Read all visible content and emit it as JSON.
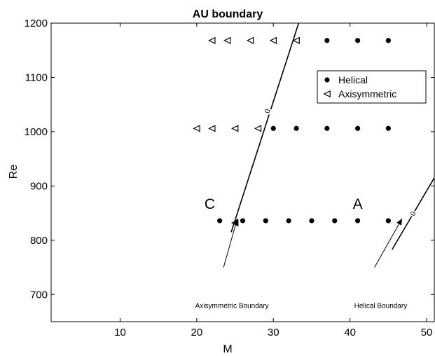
{
  "chart_data": {
    "type": "scatter",
    "title": "AU boundary",
    "xlabel": "M",
    "ylabel": "Re",
    "xlim": [
      1,
      51
    ],
    "ylim": [
      650,
      1200
    ],
    "grid": false,
    "legend_position": "top-right",
    "x_ticks": [
      10,
      20,
      30,
      40,
      50
    ],
    "x_tick_labels": [
      "10",
      "20",
      "30",
      "40",
      "50"
    ],
    "y_ticks": [
      700,
      800,
      900,
      1000,
      1100,
      1200
    ],
    "y_tick_labels": [
      "700",
      "800",
      "900",
      "1000",
      "1100",
      "1200"
    ],
    "series": [
      {
        "name": "Helical",
        "marker": "dot",
        "color": "#000000",
        "points": [
          [
            23,
            836
          ],
          [
            26,
            836
          ],
          [
            29,
            836
          ],
          [
            32,
            836
          ],
          [
            35,
            836
          ],
          [
            38,
            836
          ],
          [
            41,
            836
          ],
          [
            45,
            836
          ],
          [
            30,
            1006
          ],
          [
            33,
            1006
          ],
          [
            37,
            1006
          ],
          [
            41,
            1006
          ],
          [
            45,
            1006
          ],
          [
            37,
            1168
          ],
          [
            41,
            1168
          ],
          [
            45,
            1168
          ]
        ]
      },
      {
        "name": "Axisymmetric",
        "marker": "triangle-left",
        "color": "#000000",
        "points": [
          [
            25,
            832
          ],
          [
            20,
            1006
          ],
          [
            22,
            1006
          ],
          [
            25,
            1006
          ],
          [
            28,
            1006
          ],
          [
            22,
            1168
          ],
          [
            24,
            1168
          ],
          [
            27,
            1168
          ],
          [
            30,
            1168
          ],
          [
            33,
            1168
          ]
        ]
      }
    ],
    "boundaries": [
      {
        "name": "Axisymmetric Boundary",
        "contour_label": "0",
        "points": [
          [
            24.5,
            815
          ],
          [
            33.3,
            1200
          ]
        ],
        "label_at": [
          29.2,
          1038
        ],
        "label_rotation": -72
      },
      {
        "name": "Helical Boundary",
        "contour_label": "0",
        "points": [
          [
            45.5,
            783
          ],
          [
            51,
            915
          ]
        ],
        "label_at": [
          48.2,
          849
        ],
        "label_rotation": -60
      }
    ],
    "annotations": [
      {
        "text": "Axisymmetric Boundary",
        "text_at": [
          24.6,
          675
        ],
        "arrow_from": [
          23.5,
          750
        ],
        "arrow_to": [
          25.3,
          840
        ]
      },
      {
        "text": "Helical Boundary",
        "text_at": [
          44.0,
          675
        ],
        "arrow_from": [
          43.2,
          750
        ],
        "arrow_to": [
          46.8,
          840
        ]
      }
    ],
    "region_labels": [
      {
        "text": "C",
        "at": [
          21.7,
          867
        ]
      },
      {
        "text": "A",
        "at": [
          41.0,
          867
        ]
      }
    ]
  }
}
